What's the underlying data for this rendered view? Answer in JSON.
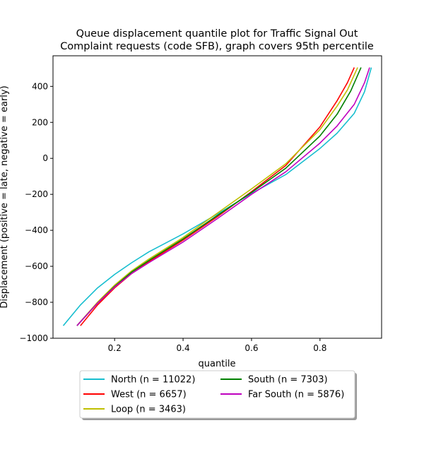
{
  "chart_data": {
    "type": "line",
    "title_lines": [
      "Queue displacement quantile plot for Traffic Signal Out",
      "Complaint  requests (code SFB), graph covers 95th percentile"
    ],
    "xlabel": "quantile",
    "ylabel": "Displacement (positive = late, negative = early)",
    "xlim": [
      0.02,
      0.98
    ],
    "ylim": [
      -1000,
      570
    ],
    "xticks": [
      0.2,
      0.4,
      0.6,
      0.8
    ],
    "xtick_labels": [
      "0.2",
      "0.4",
      "0.6",
      "0.8"
    ],
    "yticks": [
      -1000,
      -800,
      -600,
      -400,
      -200,
      0,
      200,
      400
    ],
    "ytick_labels": [
      "−1000",
      "−800",
      "−600",
      "−400",
      "−200",
      "0",
      "200",
      "400"
    ],
    "grid": false,
    "legend_position": "below-center",
    "series": [
      {
        "name": "North (n = 11022)",
        "color": "#17becf",
        "x": [
          0.05,
          0.1,
          0.15,
          0.2,
          0.25,
          0.3,
          0.4,
          0.5,
          0.6,
          0.7,
          0.8,
          0.85,
          0.9,
          0.93,
          0.95
        ],
        "y": [
          -930,
          -815,
          -720,
          -645,
          -580,
          -520,
          -420,
          -310,
          -195,
          -90,
          55,
          140,
          250,
          370,
          505
        ]
      },
      {
        "name": "West (n = 6657)",
        "color": "#ff0000",
        "x": [
          0.1,
          0.15,
          0.2,
          0.25,
          0.3,
          0.4,
          0.5,
          0.6,
          0.7,
          0.8,
          0.85,
          0.88,
          0.9
        ],
        "y": [
          -930,
          -815,
          -720,
          -640,
          -575,
          -455,
          -325,
          -185,
          -40,
          175,
          320,
          420,
          505
        ]
      },
      {
        "name": "Loop (n = 3463)",
        "color": "#bfbf00",
        "x": [
          0.09,
          0.15,
          0.2,
          0.25,
          0.3,
          0.4,
          0.5,
          0.6,
          0.7,
          0.8,
          0.85,
          0.88,
          0.91
        ],
        "y": [
          -930,
          -800,
          -705,
          -625,
          -560,
          -440,
          -305,
          -170,
          -30,
          160,
          290,
          380,
          505
        ]
      },
      {
        "name": "South (n = 7303)",
        "color": "#008000",
        "x": [
          0.09,
          0.15,
          0.2,
          0.25,
          0.3,
          0.4,
          0.5,
          0.6,
          0.7,
          0.8,
          0.85,
          0.89,
          0.92
        ],
        "y": [
          -930,
          -805,
          -712,
          -632,
          -568,
          -448,
          -318,
          -190,
          -55,
          125,
          245,
          375,
          505
        ]
      },
      {
        "name": "Far South (n = 5876)",
        "color": "#bf00bf",
        "x": [
          0.09,
          0.15,
          0.2,
          0.25,
          0.3,
          0.4,
          0.5,
          0.6,
          0.7,
          0.8,
          0.85,
          0.9,
          0.93,
          0.945
        ],
        "y": [
          -930,
          -805,
          -715,
          -640,
          -580,
          -465,
          -335,
          -200,
          -75,
          85,
          180,
          300,
          420,
          505
        ]
      }
    ]
  }
}
